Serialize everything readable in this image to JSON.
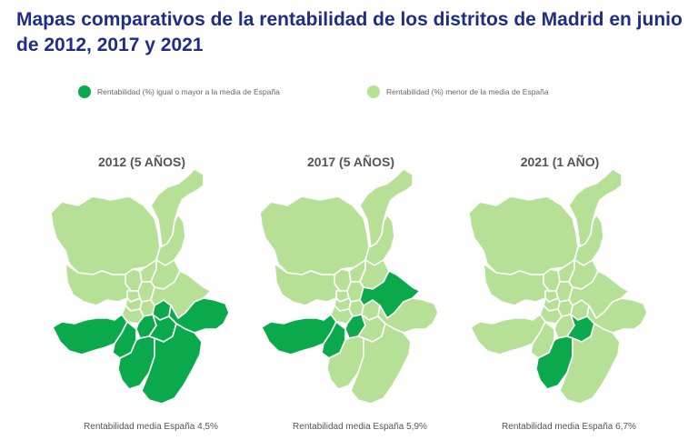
{
  "title": "Mapas comparativos de la rentabilidad de los distritos de Madrid en junio de 2012, 2017 y 2021",
  "legend": {
    "above_label": "Rentabilidad (%) igual o mayor a la media de España",
    "below_label": "Rentabilidad (%) menor de la media de España"
  },
  "colors": {
    "above": "#0aaa4c",
    "below": "#b6e096",
    "title": "#1f2d86"
  },
  "maps": [
    {
      "heading": "2012 (5 AÑOS)",
      "caption": "Rentabilidad media España 4,5%",
      "above_districts": [
        "usera",
        "latina",
        "carabanchel",
        "villaverde",
        "puente-vallecas",
        "villa-vallecas",
        "vicalvaro",
        "moratalaz"
      ]
    },
    {
      "heading": "2017 (5 AÑOS)",
      "caption": "Rentabilidad media España 5,9%",
      "above_districts": [
        "latina",
        "carabanchel",
        "usera",
        "san-blas"
      ]
    },
    {
      "heading": "2021 (1 AÑO)",
      "caption": "Rentabilidad media España 6,7%",
      "above_districts": [
        "villaverde",
        "puente-vallecas"
      ]
    }
  ]
}
